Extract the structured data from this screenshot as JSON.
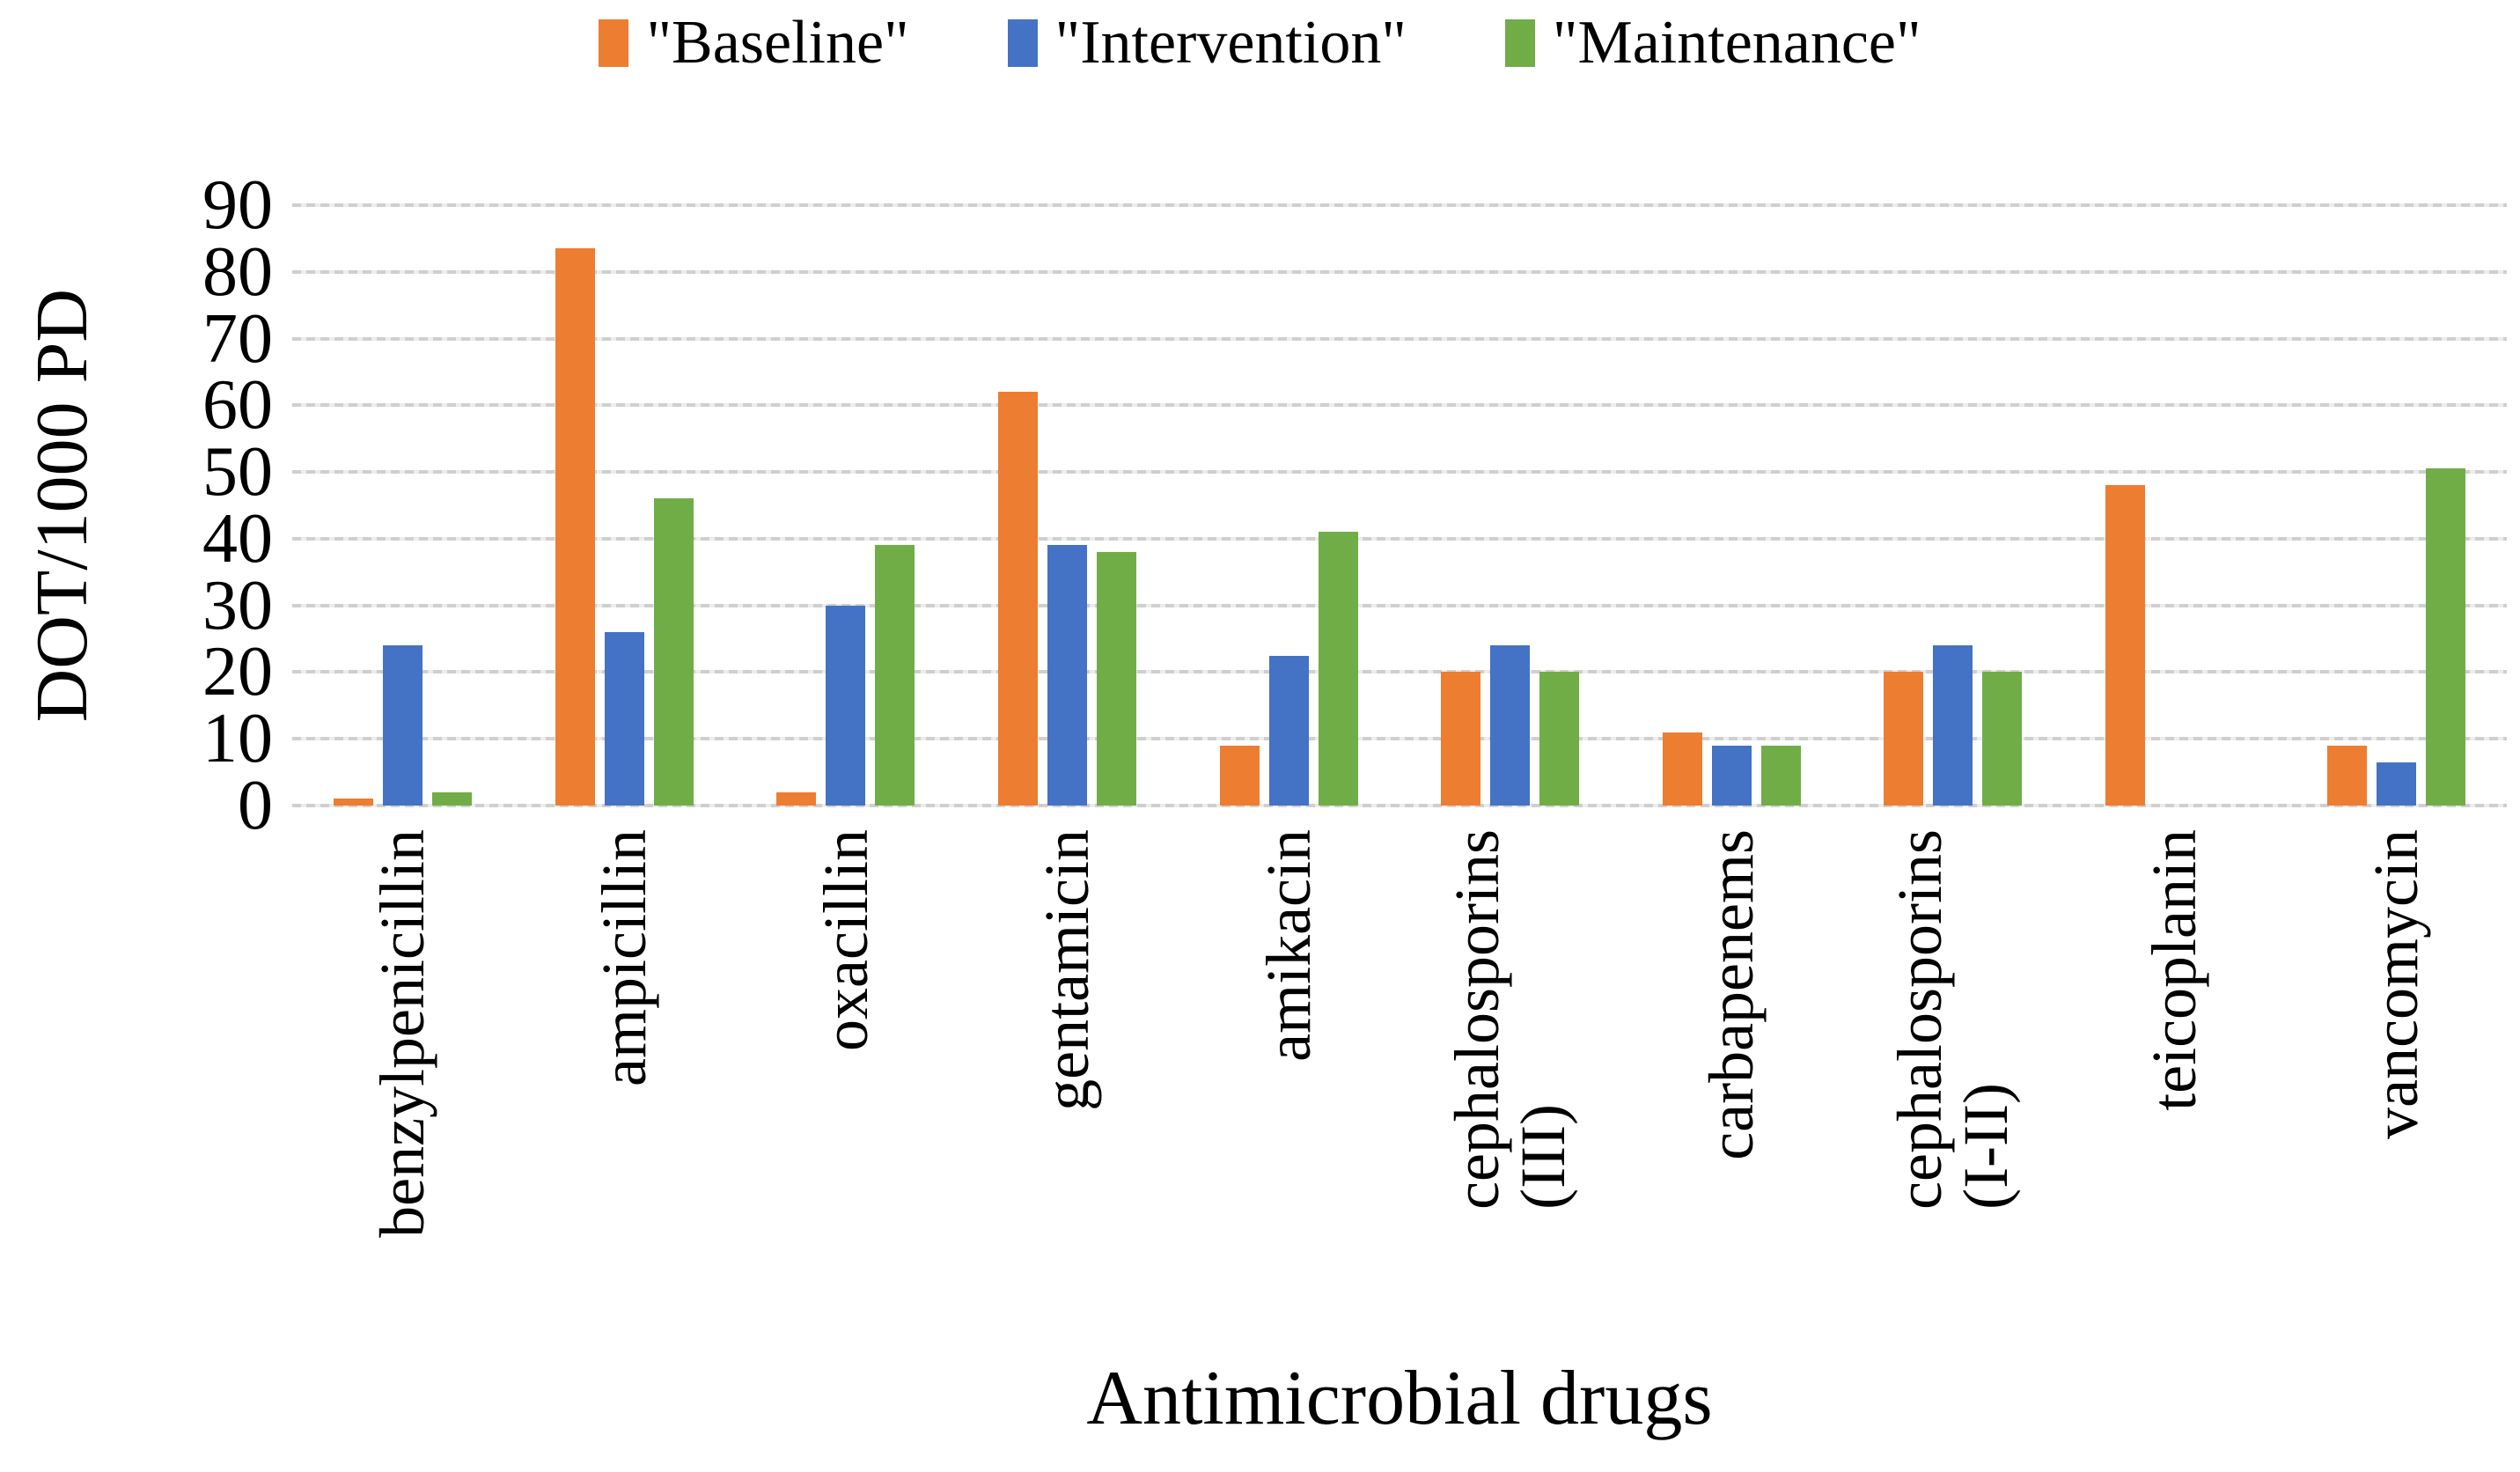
{
  "chart_data": {
    "type": "bar",
    "title": "",
    "xlabel": "Antimicrobial drugs",
    "ylabel": "DOT/1000 PD",
    "ylim": [
      0,
      90
    ],
    "ytick_step": 10,
    "yticks": [
      0,
      10,
      20,
      30,
      40,
      50,
      60,
      70,
      80,
      90
    ],
    "grid": "horizontal-dotted-gray",
    "legend_position": "top-center",
    "background": "#ffffff",
    "text_color": "#000000",
    "categories": [
      "benzylpenicillin",
      "ampicillin",
      "oxacillin",
      "gentamicin",
      "amikacin",
      "cephalosporins\n(III)",
      "carbapenems",
      "cephalosporins\n(I-II)",
      "teicoplanin",
      "vancomycin"
    ],
    "series": [
      {
        "name": "\"Baseline\"",
        "color": "#ED7D31",
        "values": [
          1,
          83.5,
          2,
          62,
          9,
          20,
          11,
          20,
          48,
          9
        ]
      },
      {
        "name": "\"Intervention\"",
        "color": "#4472C4",
        "values": [
          24,
          26,
          30,
          39,
          22.5,
          24,
          9,
          24,
          0,
          6.5
        ]
      },
      {
        "name": "\"Maintenance\"",
        "color": "#70AD47",
        "values": [
          2,
          46,
          39,
          38,
          41,
          20,
          9,
          20,
          0,
          50.5
        ]
      }
    ]
  }
}
